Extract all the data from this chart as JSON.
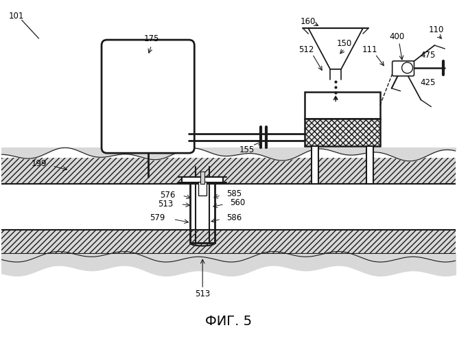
{
  "title": "ФИГ. 5",
  "bg_color": "#ffffff",
  "line_color": "#1a1a1a"
}
